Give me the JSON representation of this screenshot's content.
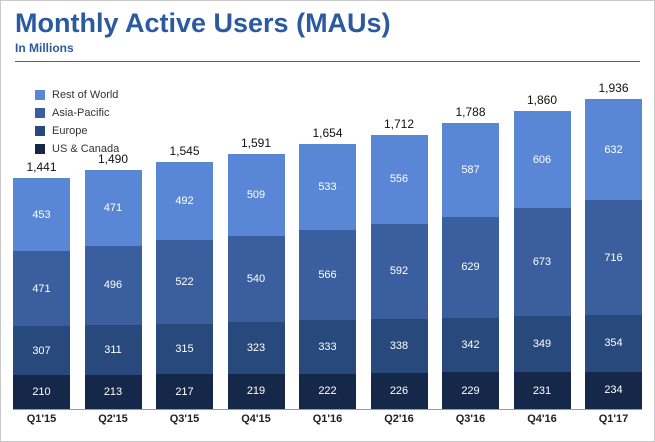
{
  "header": {
    "title": "Monthly Active Users (MAUs)",
    "subtitle": "In Millions"
  },
  "chart_data": {
    "type": "bar",
    "stacked": true,
    "title": "Monthly Active Users (MAUs)",
    "subtitle": "In Millions",
    "xlabel": "",
    "ylabel": "",
    "grid": false,
    "legend_position": "top-left",
    "categories": [
      "Q1'15",
      "Q2'15",
      "Q3'15",
      "Q4'15",
      "Q1'16",
      "Q2'16",
      "Q3'16",
      "Q4'16",
      "Q1'17"
    ],
    "series": [
      {
        "name": "Rest of World",
        "color": "#5a87d5",
        "values": [
          453,
          471,
          492,
          509,
          533,
          556,
          587,
          606,
          632
        ]
      },
      {
        "name": "Asia-Pacific",
        "color": "#3b5f9e",
        "values": [
          471,
          496,
          522,
          540,
          566,
          592,
          629,
          673,
          716
        ]
      },
      {
        "name": "Europe",
        "color": "#28497c",
        "values": [
          307,
          311,
          315,
          323,
          333,
          338,
          342,
          349,
          354
        ]
      },
      {
        "name": "US & Canada",
        "color": "#16284a",
        "values": [
          210,
          213,
          217,
          219,
          222,
          226,
          229,
          231,
          234
        ]
      }
    ],
    "totals": [
      "1,441",
      "1,490",
      "1,545",
      "1,591",
      "1,654",
      "1,712",
      "1,788",
      "1,860",
      "1,936"
    ]
  },
  "colors": {
    "title_blue": "#2b5aa0",
    "divider": "#46699e",
    "axis": "#9a9a9a",
    "total_label": "#111111",
    "segment_label": "#ffffff",
    "x_label": "#222222"
  }
}
